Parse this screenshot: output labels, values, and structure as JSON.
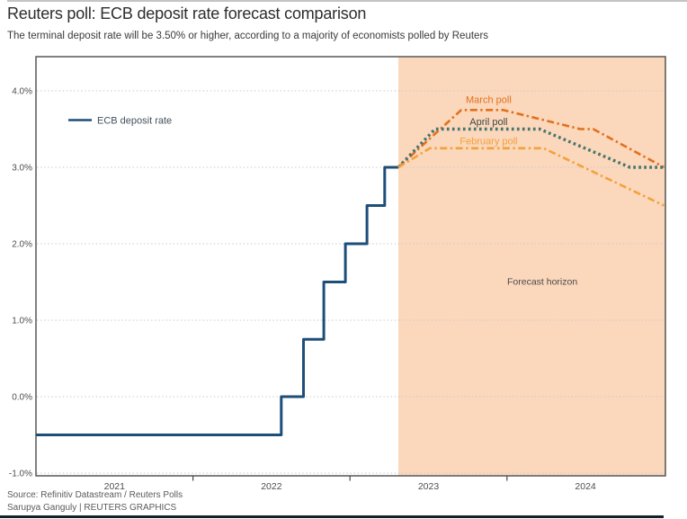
{
  "header": {
    "title": "Reuters poll: ECB deposit rate forecast comparison",
    "subtitle": "The terminal deposit rate will be 3.50% or higher, according to a majority of economists polled by Reuters"
  },
  "footer": {
    "source": "Source: Refinitiv Datastream / Reuters Polls",
    "credit": "Sarupya Ganguly | REUTERS GRAPHICS"
  },
  "chart_data": {
    "type": "line",
    "title": "Reuters poll: ECB deposit rate forecast comparison",
    "x_unit": "months since Jan 2021",
    "x_range": [
      0,
      48.1
    ],
    "y_range": [
      -1.05,
      4.45
    ],
    "grid": "horizontal-dotted",
    "frame_color": "#4a4a4a",
    "gridline_color": "#cbcbcb",
    "axis_label_color": "#4d4d4d",
    "y_axis": {
      "ticks": [
        {
          "value": 4.0,
          "label": "4.0%"
        },
        {
          "value": 3.0,
          "label": "3.0%"
        },
        {
          "value": 2.0,
          "label": "2.0%"
        },
        {
          "value": 1.0,
          "label": "1.0%"
        },
        {
          "value": 0.0,
          "label": "0.0%"
        },
        {
          "value": -1.0,
          "label": "-1.0%"
        }
      ]
    },
    "x_axis": {
      "tick_values": [
        12,
        24,
        36
      ],
      "labels": [
        {
          "value": 6,
          "text": "2021"
        },
        {
          "value": 18,
          "text": "2022"
        },
        {
          "value": 30,
          "text": "2023"
        },
        {
          "value": 42,
          "text": "2024"
        }
      ]
    },
    "forecast_region": {
      "start": 27.7,
      "end": 48.1,
      "fill": "#fbd7bc",
      "label": "Forecast horizon",
      "label_color": "#4a4a4a",
      "label_pos": {
        "x": 38.7,
        "y": 1.51
      }
    },
    "legend": {
      "label": "ECB deposit rate",
      "color": "#1d4e79",
      "text_color": "#44505c"
    },
    "series": [
      {
        "name": "ECB deposit rate",
        "color": "#1d4e79",
        "style": "solid",
        "width": 3,
        "points": [
          [
            0,
            -0.5
          ],
          [
            18.75,
            -0.5
          ],
          [
            18.75,
            0.0
          ],
          [
            20.45,
            0.0
          ],
          [
            20.45,
            0.75
          ],
          [
            22.0,
            0.75
          ],
          [
            22.0,
            1.5
          ],
          [
            23.65,
            1.5
          ],
          [
            23.65,
            2.0
          ],
          [
            25.3,
            2.0
          ],
          [
            25.3,
            2.5
          ],
          [
            26.65,
            2.5
          ],
          [
            26.65,
            3.0
          ],
          [
            27.7,
            3.0
          ]
        ]
      },
      {
        "name": "March poll",
        "color": "#e2711d",
        "style": "dashdot",
        "width": 2.6,
        "points": [
          [
            27.7,
            3.0
          ],
          [
            32.5,
            3.75
          ],
          [
            35.7,
            3.75
          ],
          [
            41.6,
            3.5
          ],
          [
            42.6,
            3.5
          ],
          [
            48,
            3.0
          ]
        ],
        "label_pos": {
          "x": 34.6,
          "y": 3.89
        },
        "label_color": "#e2711d"
      },
      {
        "name": "April poll",
        "color": "#47756d",
        "style": "dotted",
        "width": 3.4,
        "points": [
          [
            27.7,
            3.0
          ],
          [
            30.5,
            3.5
          ],
          [
            38.5,
            3.5
          ],
          [
            45.4,
            3.0
          ],
          [
            48,
            3.0
          ]
        ],
        "label_pos": {
          "x": 34.6,
          "y": 3.6
        },
        "label_color": "#3e4844"
      },
      {
        "name": "February poll",
        "color": "#f2a23a",
        "style": "dashdot",
        "width": 2.6,
        "points": [
          [
            27.7,
            3.0
          ],
          [
            30.1,
            3.25
          ],
          [
            38.8,
            3.25
          ],
          [
            48,
            2.5
          ]
        ],
        "label_pos": {
          "x": 34.6,
          "y": 3.35
        },
        "label_color": "#f2a23a"
      }
    ]
  }
}
